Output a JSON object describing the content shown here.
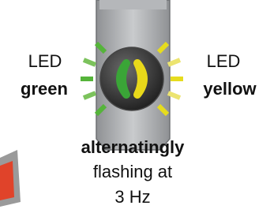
{
  "left_label": {
    "line1": "LED",
    "line2": "green"
  },
  "right_label": {
    "line1": "LED",
    "line2": "yellow"
  },
  "caption": {
    "line1": "alternatingly",
    "line2": "flashing at",
    "line3": "3 Hz"
  }
}
